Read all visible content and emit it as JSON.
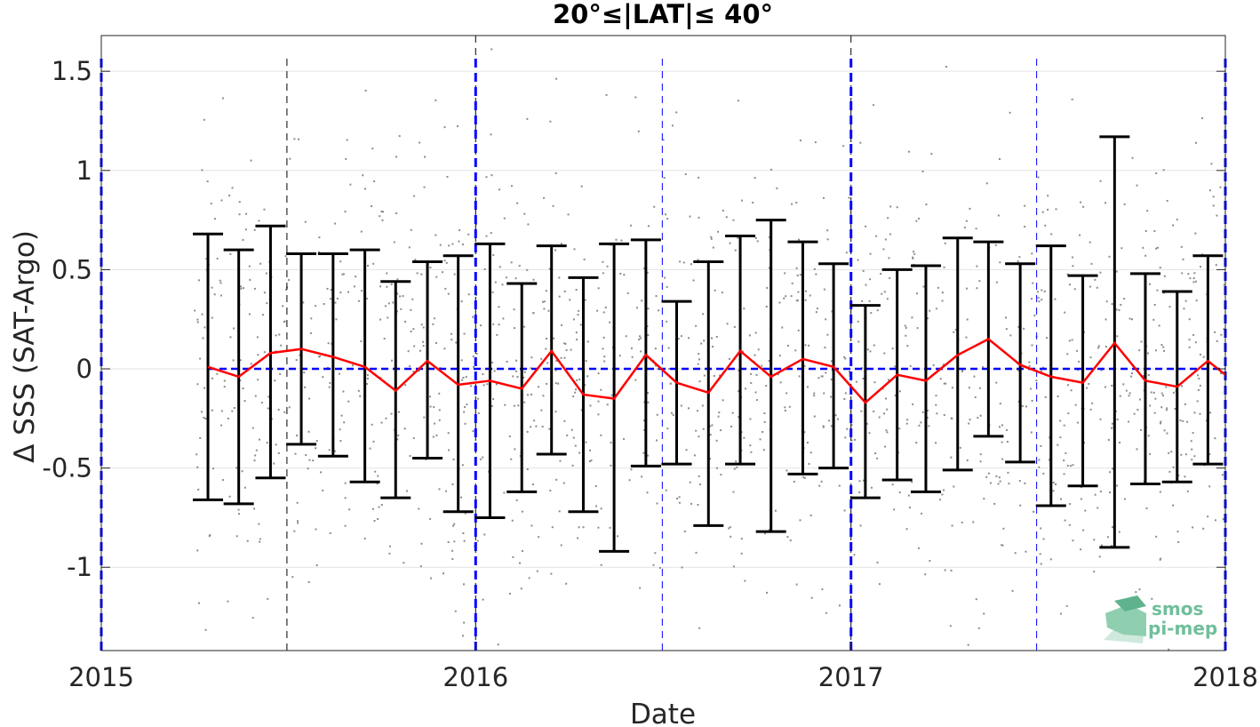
{
  "chart_data": {
    "type": "line",
    "title": "20°≤|LAT|≤ 40°",
    "xlabel": "Date",
    "ylabel": "Δ SSS (SAT-Argo)",
    "x_range": [
      "2015-01-01",
      "2018-01-01"
    ],
    "x_ticks": [
      "2015",
      "2016",
      "2017",
      "2018"
    ],
    "ylim": [
      -1.42,
      1.68
    ],
    "y_ticks": [
      1.5,
      1,
      0.5,
      0,
      -0.5,
      -1
    ],
    "y_tick_labels": [
      "1.5",
      "1",
      "0.5",
      "0",
      "-0.5",
      "-1"
    ],
    "grid": true,
    "reference_line": 0,
    "year_markers": [
      "2015-01-01",
      "2016-01-01",
      "2017-01-01",
      "2018-01-01"
    ],
    "half_year_markers": [
      "2015-07-01",
      "2016-07-01",
      "2017-07-01"
    ],
    "series": [
      {
        "kind": "mean",
        "dates": [
          "2015-04-15",
          "2015-05-15",
          "2015-06-15",
          "2015-07-15",
          "2015-08-15",
          "2015-09-15",
          "2015-10-15",
          "2015-11-15",
          "2015-12-15",
          "2016-01-15",
          "2016-02-15",
          "2016-03-15",
          "2016-04-15",
          "2016-05-15",
          "2016-06-15",
          "2016-07-15",
          "2016-08-15",
          "2016-09-15",
          "2016-10-15",
          "2016-11-15",
          "2016-12-15",
          "2017-01-15",
          "2017-02-15",
          "2017-03-15",
          "2017-04-15",
          "2017-05-15",
          "2017-06-15",
          "2017-07-15",
          "2017-08-15",
          "2017-09-15",
          "2017-10-15",
          "2017-11-15",
          "2017-12-15"
        ],
        "mean": [
          0.01,
          -0.04,
          0.08,
          0.1,
          0.06,
          0.01,
          -0.11,
          0.04,
          -0.08,
          -0.06,
          -0.1,
          0.09,
          -0.13,
          -0.15,
          0.07,
          -0.07,
          -0.12,
          0.09,
          -0.04,
          0.05,
          0.01,
          -0.17,
          -0.03,
          -0.06,
          0.07,
          0.15,
          0.02,
          -0.04,
          -0.07,
          0.13,
          -0.06,
          -0.09,
          0.04
        ],
        "upper": [
          0.68,
          0.6,
          0.72,
          0.58,
          0.58,
          0.6,
          0.44,
          0.54,
          0.57,
          0.63,
          0.43,
          0.62,
          0.46,
          0.63,
          0.65,
          0.34,
          0.54,
          0.67,
          0.75,
          0.64,
          0.53,
          0.32,
          0.5,
          0.52,
          0.66,
          0.64,
          0.53,
          0.62,
          0.47,
          1.17,
          0.48,
          0.39,
          0.57
        ],
        "lower": [
          -0.66,
          -0.68,
          -0.55,
          -0.38,
          -0.44,
          -0.57,
          -0.65,
          -0.45,
          -0.72,
          -0.75,
          -0.62,
          -0.43,
          -0.72,
          -0.92,
          -0.49,
          -0.48,
          -0.79,
          -0.48,
          -0.82,
          -0.53,
          -0.5,
          -0.65,
          -0.56,
          -0.62,
          -0.51,
          -0.34,
          -0.47,
          -0.69,
          -0.59,
          -0.9,
          -0.58,
          -0.57,
          -0.48
        ]
      }
    ],
    "scatter_note_count": 1500
  },
  "logo": {
    "line1": "smos",
    "line2": "pi-mep",
    "color": "#6fbf9a"
  },
  "colors": {
    "mean_line": "#ff0000",
    "error_bars": "#000000",
    "year_dashes": "#0000ff",
    "scatter": "#8c8c8c"
  }
}
